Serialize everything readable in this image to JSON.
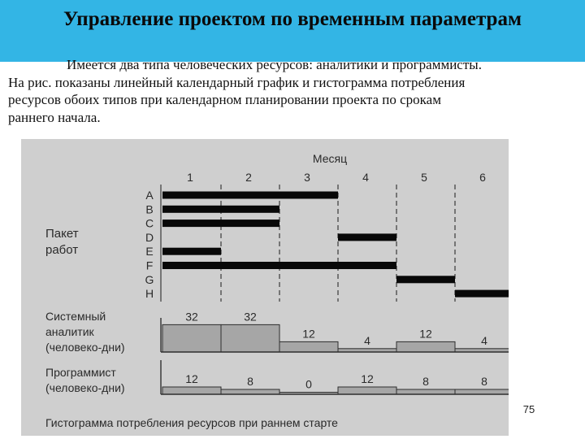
{
  "slide": {
    "title": "Управление проектом по временным параметрам",
    "paragraph_lines": [
      "Имеется два типа человеческих ресурсов: аналитики и программисты.",
      "На рис. показаны линейный календарный график и гистограмма потребления",
      "ресурсов обоих типов при календарном планировании проекта по срокам",
      "раннего начала."
    ],
    "page_number": "75"
  },
  "figure": {
    "month_header": "Месяц",
    "months": [
      "1",
      "2",
      "3",
      "4",
      "5",
      "6"
    ],
    "work_package_label_lines": [
      "Пакет",
      "работ"
    ],
    "tasks": [
      {
        "name": "A",
        "start": 1,
        "end": 4
      },
      {
        "name": "B",
        "start": 1,
        "end": 3
      },
      {
        "name": "C",
        "start": 1,
        "end": 3
      },
      {
        "name": "D",
        "start": 4,
        "end": 5
      },
      {
        "name": "E",
        "start": 1,
        "end": 2
      },
      {
        "name": "F",
        "start": 1,
        "end": 5
      },
      {
        "name": "G",
        "start": 5,
        "end": 6
      },
      {
        "name": "H",
        "start": 6,
        "end": 7
      }
    ],
    "analyst_label_lines": [
      "Системный",
      "аналитик",
      "(человеко-дни)"
    ],
    "analyst_values": [
      "32",
      "32",
      "12",
      "4",
      "12",
      "4"
    ],
    "programmer_label_lines": [
      "Программист",
      "(человеко-дни)"
    ],
    "programmer_values": [
      "12",
      "8",
      "0",
      "12",
      "8",
      "8"
    ],
    "caption": "Гистограмма потребления ресурсов при раннем старте"
  }
}
